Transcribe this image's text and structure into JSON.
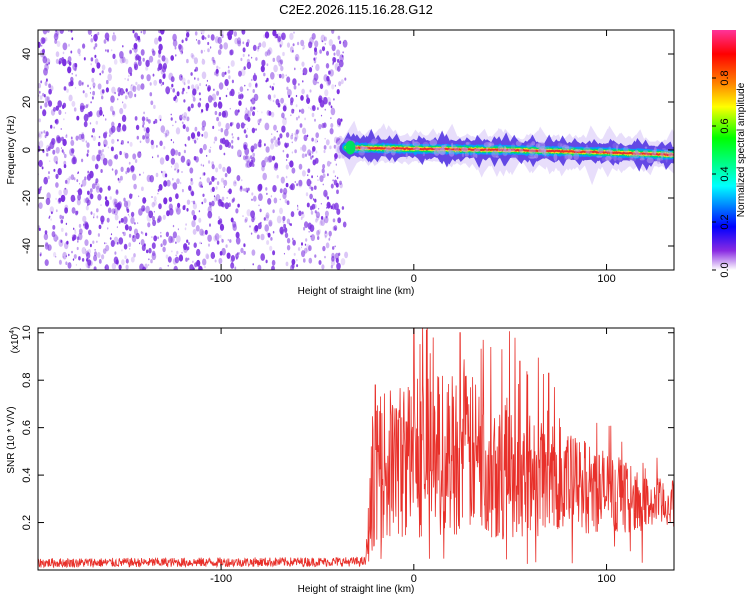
{
  "figure_title": "C2E2.2026.115.16.28.G12",
  "colors": {
    "snr_line": "#e8302a",
    "speckle": "#7a2ee0",
    "track_core": "#e8302a"
  },
  "chart_data": [
    {
      "type": "heatmap",
      "title": "C2E2.2026.115.16.28.G12",
      "xlabel": "Height of straight line (km)",
      "ylabel": "Frequency (Hz)",
      "xlim": [
        -195,
        135
      ],
      "ylim": [
        -50,
        50
      ],
      "xticks": [
        -100,
        0,
        100
      ],
      "xtick_labels": [
        "-100",
        "0",
        "100"
      ],
      "yticks": [
        -40,
        -20,
        0,
        20,
        40
      ],
      "ytick_labels": [
        "-40",
        "-20",
        "0",
        "20",
        "40"
      ],
      "noise_region_x": [
        -195,
        -35
      ],
      "track": {
        "start_x": -35,
        "end_x": 135,
        "freq_points": [
          [
            -35,
            1
          ],
          [
            0,
            0.5
          ],
          [
            50,
            0
          ],
          [
            100,
            -1
          ],
          [
            135,
            -2
          ]
        ]
      },
      "colorbar": {
        "label": "Normalized spectral amplitude",
        "range": [
          0,
          1
        ],
        "ticks": [
          0.0,
          0.2,
          0.4,
          0.6,
          0.8
        ],
        "tick_labels": [
          "0.0",
          "0.2",
          "0.4",
          "0.6",
          "0.8"
        ],
        "stops": [
          "#ffffff",
          "#8a2be2",
          "#0000ff",
          "#00ffff",
          "#00ff00",
          "#ffff00",
          "#ff8000",
          "#ff0000",
          "#ff3399"
        ]
      }
    },
    {
      "type": "line",
      "xlabel": "Height of straight line (km)",
      "ylabel": "SNR (10 * V/V)",
      "scale_label": "(x10",
      "scale_exp": "4",
      "scale_close": ")",
      "xlim": [
        -195,
        135
      ],
      "ylim": [
        0,
        1.02
      ],
      "xticks": [
        -100,
        0,
        100
      ],
      "xtick_labels": [
        "-100",
        "0",
        "100"
      ],
      "yticks": [
        0.2,
        0.4,
        0.6,
        0.8,
        1.0
      ],
      "ytick_labels": [
        "0.2",
        "0.4",
        "0.6",
        "0.8",
        "1.0"
      ],
      "series": [
        {
          "name": "SNR",
          "color": "#e8302a",
          "envelope": [
            {
              "x": -195,
              "base": 0.03,
              "spread": 0.02
            },
            {
              "x": -25,
              "base": 0.035,
              "spread": 0.02
            },
            {
              "x": -22,
              "base": 0.3,
              "spread": 0.25
            },
            {
              "x": -20,
              "base": 0.42,
              "spread": 0.3
            },
            {
              "x": 0,
              "base": 0.48,
              "spread": 0.35
            },
            {
              "x": 25,
              "base": 0.5,
              "spread": 0.35
            },
            {
              "x": 50,
              "base": 0.42,
              "spread": 0.3
            },
            {
              "x": 75,
              "base": 0.38,
              "spread": 0.22
            },
            {
              "x": 100,
              "base": 0.33,
              "spread": 0.18
            },
            {
              "x": 115,
              "base": 0.28,
              "spread": 0.12
            },
            {
              "x": 135,
              "base": 0.28,
              "spread": 0.1
            }
          ],
          "peaks": [
            [
              -20,
              0.78
            ],
            [
              0,
              1.02
            ],
            [
              10,
              0.98
            ],
            [
              24,
              1.0
            ],
            [
              40,
              0.94
            ],
            [
              55,
              0.88
            ],
            [
              70,
              0.83
            ],
            [
              95,
              0.62
            ],
            [
              110,
              0.45
            ]
          ]
        }
      ]
    }
  ]
}
